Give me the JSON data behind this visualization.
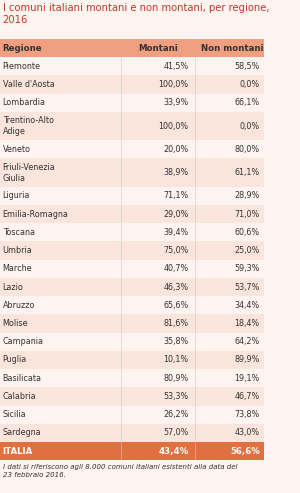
{
  "title": "I comuni italiani montani e non montani, per regione,\n2016",
  "col_region": "Regione",
  "col_montani": "Montani",
  "col_nonmontani": "Non montani",
  "regions": [
    "Piemonte",
    "Valle d'Aosta",
    "Lombardia",
    "Trentino-Alto\nAdige",
    "Veneto",
    "Friuli-Venezia\nGiulia",
    "Liguria",
    "Emilia-Romagna",
    "Toscana",
    "Umbria",
    "Marche",
    "Lazio",
    "Abruzzo",
    "Molise",
    "Campania",
    "Puglia",
    "Basilicata",
    "Calabria",
    "Sicilia",
    "Sardegna"
  ],
  "montani": [
    41.5,
    100.0,
    33.9,
    100.0,
    20.0,
    38.9,
    71.1,
    29.0,
    39.4,
    75.0,
    40.7,
    46.3,
    65.6,
    81.6,
    35.8,
    10.1,
    80.9,
    53.3,
    26.2,
    57.0
  ],
  "non_montani": [
    58.5,
    0.0,
    66.1,
    0.0,
    80.0,
    61.1,
    28.9,
    71.0,
    60.6,
    25.0,
    59.3,
    53.7,
    34.4,
    18.4,
    64.2,
    89.9,
    19.1,
    46.7,
    73.8,
    43.0
  ],
  "italia_montani": 43.4,
  "italia_non_montani": 56.6,
  "footer": "I dati si riferiscono agli 8.000 comuni italiani esistenti alla data del\n23 febbraio 2016.",
  "bg_color": "#fdf3ef",
  "header_bg": "#f0a080",
  "italia_bg": "#e07040",
  "title_color": "#c0392b",
  "text_color": "#333333",
  "italia_text_color": "#ffffff",
  "alt_row_color": "#f9e5dc"
}
